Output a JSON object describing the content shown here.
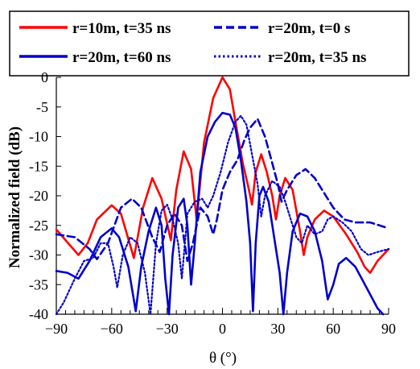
{
  "chart_data": {
    "type": "line",
    "xlabel": "θ (°)",
    "ylabel": "Normalized field (dB)",
    "xlim": [
      -90,
      90
    ],
    "ylim": [
      -40,
      0
    ],
    "x_ticks": [
      -90,
      -60,
      -30,
      0,
      30,
      60,
      90
    ],
    "x_tick_labels": [
      "−90",
      "−60",
      "−30",
      "0",
      "30",
      "60",
      "90"
    ],
    "y_ticks": [
      0,
      -5,
      -10,
      -15,
      -20,
      -25,
      -30,
      -35,
      -40
    ],
    "y_tick_labels": [
      "0",
      "-5",
      "-10",
      "-15",
      "-20",
      "-25",
      "-30",
      "-35",
      "-40"
    ],
    "grid": false,
    "legend_position": "top",
    "colors": {
      "red": "#ff0000",
      "blue": "#0000cc"
    },
    "series": [
      {
        "name": "r=10m, t=35 ns",
        "color": "#ff0000",
        "style": "solid",
        "points": [
          [
            -90,
            -25.7
          ],
          [
            -85,
            -27.5
          ],
          [
            -78,
            -30
          ],
          [
            -73,
            -28
          ],
          [
            -68,
            -24
          ],
          [
            -60,
            -21.6
          ],
          [
            -55,
            -23
          ],
          [
            -48,
            -30.5
          ],
          [
            -43,
            -22
          ],
          [
            -38,
            -17
          ],
          [
            -33,
            -20.5
          ],
          [
            -28,
            -27.5
          ],
          [
            -25,
            -19
          ],
          [
            -21,
            -12.5
          ],
          [
            -17,
            -15.5
          ],
          [
            -14,
            -24
          ],
          [
            -10,
            -11
          ],
          [
            -5,
            -3.5
          ],
          [
            0,
            0
          ],
          [
            4,
            -2
          ],
          [
            7,
            -7.5
          ],
          [
            11,
            -14.5
          ],
          [
            14,
            -18.5
          ],
          [
            16,
            -21.5
          ],
          [
            18,
            -16
          ],
          [
            21,
            -13
          ],
          [
            24,
            -16
          ],
          [
            27,
            -20
          ],
          [
            29,
            -24
          ],
          [
            31,
            -20
          ],
          [
            34,
            -17
          ],
          [
            38,
            -19
          ],
          [
            42,
            -26
          ],
          [
            44,
            -30
          ],
          [
            46,
            -27
          ],
          [
            50,
            -24
          ],
          [
            55,
            -22.5
          ],
          [
            60,
            -23.5
          ],
          [
            67,
            -26.5
          ],
          [
            73,
            -29.5
          ],
          [
            77,
            -32
          ],
          [
            80,
            -33
          ],
          [
            84,
            -31
          ],
          [
            90,
            -29
          ]
        ]
      },
      {
        "name": "r=20m, t=0 s",
        "color": "#0000cc",
        "style": "dashed",
        "points": [
          [
            -90,
            -26.5
          ],
          [
            -80,
            -27
          ],
          [
            -72,
            -29
          ],
          [
            -68,
            -30.7
          ],
          [
            -62,
            -28
          ],
          [
            -55,
            -22
          ],
          [
            -49,
            -20.5
          ],
          [
            -44,
            -22
          ],
          [
            -38,
            -27
          ],
          [
            -34,
            -29.5
          ],
          [
            -30,
            -25
          ],
          [
            -26,
            -23
          ],
          [
            -22,
            -25
          ],
          [
            -19,
            -31
          ],
          [
            -16,
            -28
          ],
          [
            -12,
            -22
          ],
          [
            -8,
            -23.5
          ],
          [
            -5,
            -26.5
          ],
          [
            -3,
            -24
          ],
          [
            0,
            -19
          ],
          [
            4,
            -16
          ],
          [
            8,
            -14
          ],
          [
            12,
            -10.5
          ],
          [
            15,
            -8.5
          ],
          [
            19,
            -7
          ],
          [
            23,
            -10
          ],
          [
            27,
            -14.5
          ],
          [
            30,
            -18
          ],
          [
            32,
            -21
          ],
          [
            35,
            -19
          ],
          [
            40,
            -16.5
          ],
          [
            45,
            -15.5
          ],
          [
            50,
            -17
          ],
          [
            55,
            -19.5
          ],
          [
            60,
            -22
          ],
          [
            66,
            -24
          ],
          [
            72,
            -24.5
          ],
          [
            80,
            -24.5
          ],
          [
            90,
            -25.5
          ]
        ]
      },
      {
        "name": "r=20m, t=60 ns",
        "color": "#0000cc",
        "style": "solid",
        "points": [
          [
            -90,
            -32.7
          ],
          [
            -84,
            -33
          ],
          [
            -78,
            -34
          ],
          [
            -72,
            -31
          ],
          [
            -66,
            -27
          ],
          [
            -60,
            -25.5
          ],
          [
            -56,
            -27
          ],
          [
            -51,
            -32
          ],
          [
            -47,
            -39.5
          ],
          [
            -44,
            -32
          ],
          [
            -40,
            -26
          ],
          [
            -36,
            -22
          ],
          [
            -33,
            -25
          ],
          [
            -31,
            -34
          ],
          [
            -29,
            -40
          ],
          [
            -27,
            -30
          ],
          [
            -24,
            -22
          ],
          [
            -21,
            -20.5
          ],
          [
            -19,
            -25
          ],
          [
            -17,
            -35
          ],
          [
            -15,
            -28
          ],
          [
            -12,
            -16
          ],
          [
            -8,
            -10
          ],
          [
            -4,
            -7.5
          ],
          [
            0,
            -6
          ],
          [
            4,
            -6.3
          ],
          [
            7,
            -8.5
          ],
          [
            10,
            -14
          ],
          [
            13,
            -21
          ],
          [
            15,
            -28
          ],
          [
            16.5,
            -39.5
          ],
          [
            18,
            -28
          ],
          [
            20,
            -20
          ],
          [
            22,
            -18.5
          ],
          [
            25,
            -21
          ],
          [
            28,
            -27
          ],
          [
            31,
            -33
          ],
          [
            33,
            -40
          ],
          [
            35,
            -33
          ],
          [
            38,
            -26
          ],
          [
            42,
            -23
          ],
          [
            46,
            -23.5
          ],
          [
            50,
            -26
          ],
          [
            54,
            -31
          ],
          [
            57,
            -37.5
          ],
          [
            60,
            -35
          ],
          [
            63,
            -31.5
          ],
          [
            67,
            -30.5
          ],
          [
            72,
            -32
          ],
          [
            78,
            -35.5
          ],
          [
            84,
            -39
          ],
          [
            87,
            -40
          ]
        ]
      },
      {
        "name": "r=20m, t=35 ns",
        "color": "#0000cc",
        "style": "dotted",
        "points": [
          [
            -90,
            -40
          ],
          [
            -86,
            -38
          ],
          [
            -80,
            -34
          ],
          [
            -75,
            -31
          ],
          [
            -70,
            -30.5
          ],
          [
            -66,
            -28
          ],
          [
            -62,
            -28
          ],
          [
            -59,
            -32
          ],
          [
            -57,
            -35.5
          ],
          [
            -54,
            -30
          ],
          [
            -50,
            -27
          ],
          [
            -46,
            -28
          ],
          [
            -42,
            -33
          ],
          [
            -39,
            -40
          ],
          [
            -36,
            -28
          ],
          [
            -33,
            -22.5
          ],
          [
            -30,
            -21.5
          ],
          [
            -27,
            -24
          ],
          [
            -24,
            -28
          ],
          [
            -22,
            -34
          ],
          [
            -19,
            -23
          ],
          [
            -15,
            -21
          ],
          [
            -11,
            -20.5
          ],
          [
            -8,
            -22
          ],
          [
            -5,
            -20
          ],
          [
            -1,
            -16
          ],
          [
            3,
            -11
          ],
          [
            7,
            -7.5
          ],
          [
            10,
            -6.5
          ],
          [
            13,
            -8
          ],
          [
            16,
            -13
          ],
          [
            19,
            -18
          ],
          [
            21,
            -23.5
          ],
          [
            23,
            -20
          ],
          [
            27,
            -17.5
          ],
          [
            31,
            -18.5
          ],
          [
            34,
            -21
          ],
          [
            37,
            -24
          ],
          [
            40,
            -27
          ],
          [
            43,
            -28
          ],
          [
            46,
            -25
          ],
          [
            50,
            -26.5
          ],
          [
            54,
            -26
          ],
          [
            57,
            -24
          ],
          [
            60,
            -23.5
          ],
          [
            65,
            -24.5
          ],
          [
            70,
            -26
          ],
          [
            75,
            -29
          ],
          [
            79,
            -30
          ],
          [
            84,
            -29.5
          ],
          [
            90,
            -29
          ]
        ]
      }
    ]
  }
}
